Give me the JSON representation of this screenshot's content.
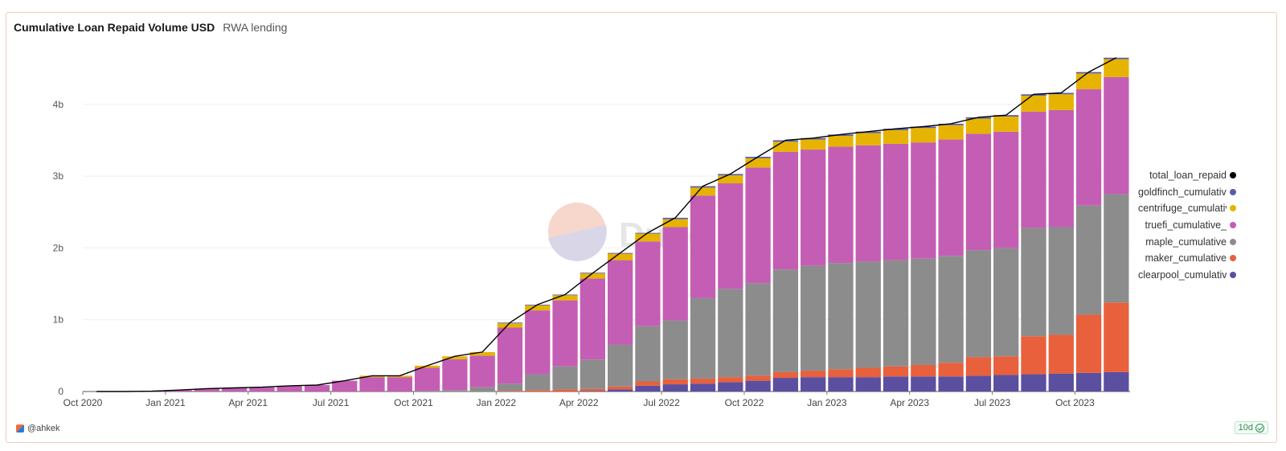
{
  "header": {
    "title": "Cumulative Loan Repaid Volume USD",
    "subtitle": "RWA lending"
  },
  "watermark": {
    "text": "Dune"
  },
  "footer": {
    "author": "@ahkek",
    "freshness": "10d"
  },
  "legend": [
    {
      "label": "total_loan_repaid",
      "color": "#000000"
    },
    {
      "label": "goldfinch_cumulative",
      "color": "#5b5ea6"
    },
    {
      "label": "centrifuge_cumulative",
      "color": "#e6b400"
    },
    {
      "label": "truefi_cumulative_",
      "color": "#c45eb4"
    },
    {
      "label": "maple_cumulative",
      "color": "#8c8c8c"
    },
    {
      "label": "maker_cumulative",
      "color": "#e8603c"
    },
    {
      "label": "clearpool_cumulative",
      "color": "#5b4fa0"
    }
  ],
  "chart_data": {
    "type": "bar",
    "stacked": true,
    "x_ticks": [
      "Oct 2020",
      "Jan 2021",
      "Apr 2021",
      "Jul 2021",
      "Oct 2021",
      "Jan 2022",
      "Apr 2022",
      "Jul 2022",
      "Oct 2022",
      "Jan 2023",
      "Apr 2023",
      "Jul 2023",
      "Oct 2023"
    ],
    "y_ticks": [
      "0",
      "1b",
      "2b",
      "3b",
      "4b"
    ],
    "ylim": [
      0,
      4.7
    ],
    "y_unit": "b",
    "months": [
      "2020-10",
      "2020-11",
      "2020-12",
      "2021-01",
      "2021-02",
      "2021-03",
      "2021-04",
      "2021-05",
      "2021-06",
      "2021-07",
      "2021-08",
      "2021-09",
      "2021-10",
      "2021-11",
      "2021-12",
      "2022-01",
      "2022-02",
      "2022-03",
      "2022-04",
      "2022-05",
      "2022-06",
      "2022-07",
      "2022-08",
      "2022-09",
      "2022-10",
      "2022-11",
      "2022-12",
      "2023-01",
      "2023-02",
      "2023-03",
      "2023-04",
      "2023-05",
      "2023-06",
      "2023-07",
      "2023-08",
      "2023-09",
      "2023-10",
      "2023-11"
    ],
    "series": [
      {
        "name": "clearpool_cumulative",
        "color": "#5b4fa0",
        "values": [
          0,
          0,
          0,
          0,
          0,
          0,
          0,
          0,
          0,
          0,
          0,
          0,
          0,
          0,
          0,
          0,
          0,
          0,
          0.005,
          0.03,
          0.08,
          0.1,
          0.11,
          0.13,
          0.15,
          0.19,
          0.2,
          0.2,
          0.2,
          0.21,
          0.21,
          0.21,
          0.22,
          0.23,
          0.24,
          0.25,
          0.26,
          0.27
        ]
      },
      {
        "name": "maker_cumulative",
        "color": "#e8603c",
        "values": [
          0,
          0,
          0,
          0,
          0,
          0,
          0,
          0,
          0,
          0,
          0,
          0,
          0,
          0,
          0,
          0.01,
          0.02,
          0.03,
          0.03,
          0.04,
          0.06,
          0.07,
          0.07,
          0.07,
          0.07,
          0.08,
          0.09,
          0.11,
          0.13,
          0.14,
          0.16,
          0.19,
          0.26,
          0.26,
          0.53,
          0.54,
          0.81,
          0.97
        ]
      },
      {
        "name": "maple_cumulative",
        "color": "#8c8c8c",
        "values": [
          0,
          0,
          0,
          0,
          0,
          0,
          0,
          0,
          0,
          0,
          0,
          0,
          0.01,
          0.02,
          0.06,
          0.1,
          0.22,
          0.32,
          0.41,
          0.58,
          0.77,
          0.82,
          1.12,
          1.23,
          1.29,
          1.43,
          1.46,
          1.48,
          1.48,
          1.48,
          1.48,
          1.49,
          1.49,
          1.51,
          1.51,
          1.5,
          1.52,
          1.51
        ]
      },
      {
        "name": "truefi_cumulative_",
        "color": "#c45eb4",
        "values": [
          0,
          0,
          0.005,
          0.02,
          0.04,
          0.05,
          0.06,
          0.08,
          0.09,
          0.15,
          0.2,
          0.2,
          0.32,
          0.43,
          0.44,
          0.78,
          0.89,
          0.92,
          1.13,
          1.18,
          1.18,
          1.3,
          1.43,
          1.47,
          1.61,
          1.64,
          1.62,
          1.62,
          1.62,
          1.62,
          1.62,
          1.62,
          1.62,
          1.62,
          1.62,
          1.63,
          1.62,
          1.63
        ]
      },
      {
        "name": "centrifuge_cumulative",
        "color": "#e6b400",
        "values": [
          0,
          0,
          0,
          0,
          0,
          0,
          0,
          0,
          0,
          0,
          0.02,
          0.02,
          0.03,
          0.04,
          0.05,
          0.06,
          0.07,
          0.07,
          0.07,
          0.09,
          0.11,
          0.11,
          0.11,
          0.11,
          0.13,
          0.14,
          0.14,
          0.15,
          0.17,
          0.19,
          0.2,
          0.2,
          0.21,
          0.21,
          0.22,
          0.22,
          0.22,
          0.25
        ]
      },
      {
        "name": "goldfinch_cumulative",
        "color": "#5b5ea6",
        "values": [
          0,
          0,
          0,
          0,
          0,
          0,
          0,
          0,
          0,
          0,
          0,
          0,
          0,
          0,
          0,
          0.01,
          0.01,
          0.01,
          0.01,
          0.01,
          0.01,
          0.02,
          0.02,
          0.02,
          0.02,
          0.02,
          0.02,
          0.02,
          0.02,
          0.02,
          0.02,
          0.02,
          0.02,
          0.02,
          0.02,
          0.02,
          0.02,
          0.02
        ]
      }
    ],
    "line": {
      "name": "total_loan_repaid",
      "color": "#000000",
      "values": [
        0,
        0,
        0.005,
        0.02,
        0.04,
        0.05,
        0.06,
        0.08,
        0.09,
        0.15,
        0.22,
        0.22,
        0.36,
        0.49,
        0.55,
        0.96,
        1.21,
        1.35,
        1.65,
        1.93,
        2.21,
        2.42,
        2.86,
        3.03,
        3.27,
        3.5,
        3.53,
        3.58,
        3.62,
        3.66,
        3.69,
        3.73,
        3.82,
        3.85,
        4.14,
        4.16,
        4.45,
        4.65
      ]
    }
  }
}
